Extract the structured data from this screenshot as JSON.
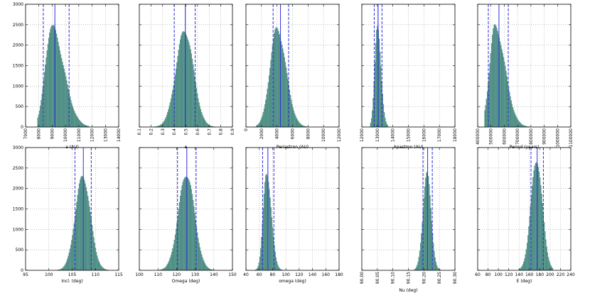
{
  "figure": {
    "background": "#ffffff"
  },
  "style": {
    "bar_fill": "#5f9e93",
    "bar_edge": "#2e6b66",
    "median_line": "#2b2bdc",
    "ci_line": "#2b2bdc",
    "grid": "#9a9a9a"
  },
  "chart_data": [
    {
      "type": "bar",
      "xlabel": "a (AU)",
      "xlim": [
        7000,
        14000
      ],
      "ylim": [
        0,
        3000
      ],
      "xticks": [
        7000,
        8000,
        9000,
        10000,
        11000,
        12000,
        13000,
        14000
      ],
      "yticks": [
        0,
        500,
        1000,
        1500,
        2000,
        2500,
        3000
      ],
      "grid": true,
      "xtick_rotation": 90,
      "dist": {
        "mode": 8950,
        "peak": 2450,
        "sigma_left": 470,
        "sigma_right": 900,
        "start": 7900,
        "end": 11800
      },
      "median": 9200,
      "ci": [
        8330,
        10270
      ]
    },
    {
      "type": "bar",
      "xlabel": "e",
      "xlim": [
        0.1,
        0.9
      ],
      "ylim": [
        0,
        3000
      ],
      "xticks": [
        0.1,
        0.2,
        0.3,
        0.4,
        0.5,
        0.6,
        0.7,
        0.8,
        0.9
      ],
      "yticks": [
        0,
        500,
        1000,
        1500,
        2000,
        2500,
        3000
      ],
      "grid": true,
      "xtick_rotation": 90,
      "dist": {
        "mode": 0.49,
        "peak": 2350,
        "sigma_left": 0.075,
        "sigma_right": 0.075,
        "start": 0.2,
        "end": 0.78
      },
      "median": 0.495,
      "ci": [
        0.4,
        0.58
      ]
    },
    {
      "type": "bar",
      "xlabel": "Periastron (AU)",
      "xlim": [
        0,
        12000
      ],
      "ylim": [
        0,
        3000
      ],
      "xticks": [
        0,
        2000,
        4000,
        6000,
        8000,
        10000,
        12000
      ],
      "yticks": [
        0,
        500,
        1000,
        1500,
        2000,
        2500,
        3000
      ],
      "grid": true,
      "xtick_rotation": 90,
      "dist": {
        "mode": 4000,
        "peak": 2400,
        "sigma_left": 900,
        "sigma_right": 1150,
        "start": 1300,
        "end": 8200
      },
      "median": 4450,
      "ci": [
        3500,
        5500
      ]
    },
    {
      "type": "bar",
      "xlabel": "Apastron (AU)",
      "xlim": [
        12000,
        18000
      ],
      "ylim": [
        0,
        3000
      ],
      "xticks": [
        12000,
        13000,
        14000,
        15000,
        16000,
        17000,
        18000
      ],
      "yticks": [
        0,
        500,
        1000,
        1500,
        2000,
        2500,
        3000
      ],
      "grid": true,
      "xtick_rotation": 90,
      "dist": {
        "mode": 13000,
        "peak": 2400,
        "sigma_left": 170,
        "sigma_right": 230,
        "start": 12550,
        "end": 13700
      },
      "median": 13050,
      "ci": [
        12800,
        13300
      ]
    },
    {
      "type": "bar",
      "xlabel": "Period (years)",
      "xlim": [
        400000,
        1100000
      ],
      "ylim": [
        0,
        3000
      ],
      "xticks": [
        400000,
        500000,
        600000,
        700000,
        800000,
        900000,
        1000000,
        1100000
      ],
      "yticks": [
        0,
        500,
        1000,
        1500,
        2000,
        2500,
        3000
      ],
      "grid": true,
      "xtick_rotation": 90,
      "dist": {
        "mode": 530000,
        "peak": 2450,
        "sigma_left": 40000,
        "sigma_right": 75000,
        "start": 450000,
        "end": 800000
      },
      "median": 560000,
      "ci": [
        480000,
        630000
      ]
    },
    {
      "type": "bar",
      "xlabel": "Incl. (deg)",
      "xlim": [
        95,
        115
      ],
      "ylim": [
        0,
        3000
      ],
      "xticks": [
        95,
        100,
        105,
        110,
        115
      ],
      "yticks": [
        0,
        500,
        1000,
        1500,
        2000,
        2500,
        3000
      ],
      "grid": true,
      "xtick_rotation": 0,
      "dist": {
        "mode": 107.3,
        "peak": 2300,
        "sigma_left": 1.6,
        "sigma_right": 1.6,
        "start": 101.5,
        "end": 113
      },
      "median": 107.4,
      "ci": [
        105.6,
        109.1
      ]
    },
    {
      "type": "bar",
      "xlabel": "Omega (deg)",
      "xlim": [
        100,
        150
      ],
      "ylim": [
        0,
        3000
      ],
      "xticks": [
        100,
        110,
        120,
        130,
        140,
        150
      ],
      "yticks": [
        0,
        500,
        1000,
        1500,
        2000,
        2500,
        3000
      ],
      "grid": true,
      "xtick_rotation": 0,
      "dist": {
        "mode": 125.3,
        "peak": 2350,
        "sigma_left": 4.3,
        "sigma_right": 4.3,
        "start": 110,
        "end": 141
      },
      "median": 125.5,
      "ci": [
        120.5,
        130.5
      ]
    },
    {
      "type": "bar",
      "xlabel": "omega (deg)",
      "xlim": [
        40,
        180
      ],
      "ylim": [
        0,
        3000
      ],
      "xticks": [
        40,
        60,
        80,
        100,
        120,
        140,
        160,
        180
      ],
      "yticks": [
        0,
        500,
        1000,
        1500,
        2000,
        2500,
        3000
      ],
      "grid": true,
      "xtick_rotation": 0,
      "dist": {
        "mode": 71,
        "peak": 2400,
        "sigma_left": 5,
        "sigma_right": 7,
        "start": 52,
        "end": 100
      },
      "median": 73,
      "ci": [
        65,
        82
      ]
    },
    {
      "type": "bar",
      "xlabel": "Nu (deg)",
      "xlim": [
        90,
        90.3
      ],
      "ylim": [
        0,
        3000
      ],
      "xticks": [
        90.0,
        90.05,
        90.1,
        90.15,
        90.2,
        90.25,
        90.3
      ],
      "xtick_labels": [
        "90.00",
        "90.05",
        "90.10",
        "90.15",
        "90.20",
        "90.25",
        "90.30"
      ],
      "yticks": [
        0,
        500,
        1000,
        1500,
        2000,
        2500,
        3000
      ],
      "grid": true,
      "xtick_rotation": 90,
      "dist": {
        "mode": 90.21,
        "peak": 2350,
        "sigma_left": 0.013,
        "sigma_right": 0.013,
        "start": 90.17,
        "end": 90.255
      },
      "median": 90.212,
      "ci": [
        90.197,
        90.227
      ]
    },
    {
      "type": "bar",
      "xlabel": "E (deg)",
      "xlim": [
        60,
        240
      ],
      "ylim": [
        0,
        3000
      ],
      "xticks": [
        60,
        80,
        100,
        120,
        140,
        160,
        180,
        200,
        220,
        240
      ],
      "yticks": [
        0,
        500,
        1000,
        1500,
        2000,
        2500,
        3000
      ],
      "grid": true,
      "xtick_rotation": 0,
      "dist": {
        "mode": 174,
        "peak": 2700,
        "sigma_left": 11,
        "sigma_right": 11,
        "start": 140,
        "end": 205
      },
      "median": 175,
      "ci": [
        163,
        187
      ]
    }
  ]
}
